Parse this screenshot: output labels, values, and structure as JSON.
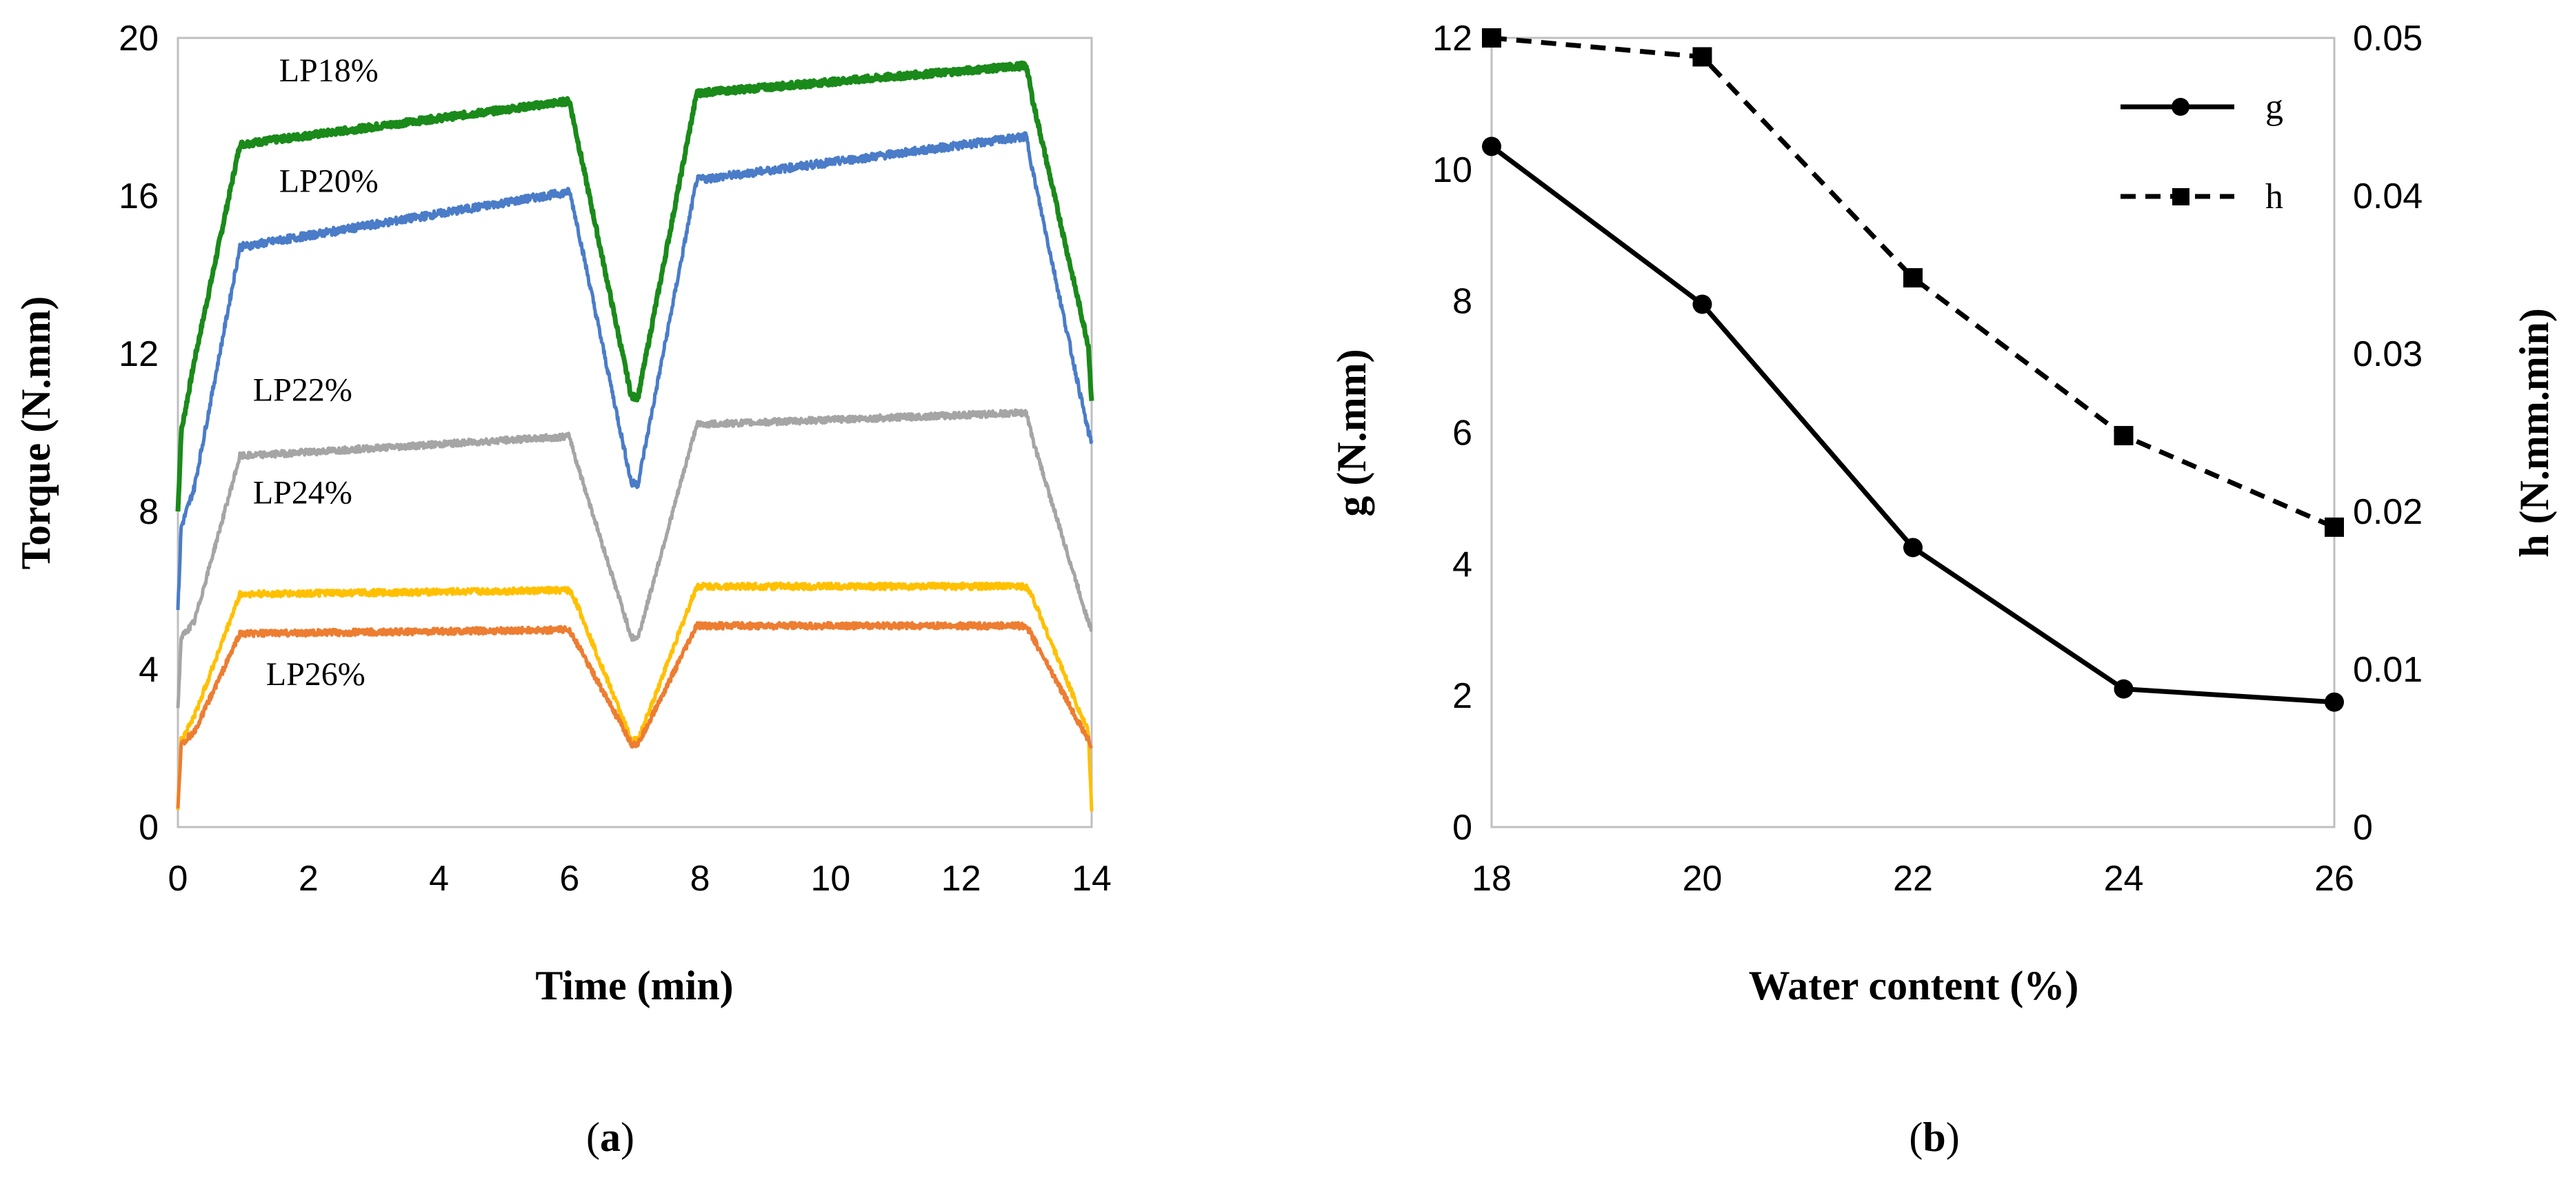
{
  "chart_data": [
    {
      "id": "a",
      "type": "line",
      "caption_open": "(",
      "caption_letter": "a",
      "caption_close": ")",
      "xlabel": "Time (min)",
      "ylabel": "Torque (N.mm)",
      "xlim": [
        0,
        14
      ],
      "ylim": [
        0,
        20
      ],
      "xticks": [
        0,
        2,
        4,
        6,
        8,
        10,
        12,
        14
      ],
      "yticks": [
        0,
        4,
        8,
        12,
        16,
        20
      ],
      "series": [
        {
          "name": "LP18%",
          "color": "#1a8a1a",
          "label_x": 1.55,
          "label_y": 18.9,
          "x": [
            0,
            0.05,
            0.25,
            0.95,
            6.0,
            6.1,
            6.95,
            7.05,
            7.95,
            13.0,
            13.1,
            13.95,
            14
          ],
          "y": [
            8.0,
            10.0,
            11.8,
            17.3,
            18.4,
            17.6,
            10.9,
            10.9,
            18.6,
            19.3,
            18.4,
            12.2,
            10.8
          ]
        },
        {
          "name": "LP20%",
          "color": "#4a7cc8",
          "label_x": 1.55,
          "label_y": 16.1,
          "x": [
            0,
            0.05,
            0.25,
            0.95,
            6.0,
            6.1,
            6.95,
            7.05,
            7.95,
            13.0,
            13.1,
            13.95,
            14
          ],
          "y": [
            5.5,
            7.6,
            8.6,
            14.7,
            16.1,
            15.4,
            8.7,
            8.7,
            16.4,
            17.5,
            16.6,
            10.0,
            9.8
          ]
        },
        {
          "name": "LP22%",
          "color": "#a5a5a5",
          "label_x": 1.15,
          "label_y": 10.8,
          "x": [
            0,
            0.05,
            0.25,
            0.95,
            6.0,
            6.1,
            6.95,
            7.05,
            7.95,
            13.0,
            13.1,
            13.95,
            14
          ],
          "y": [
            3.0,
            4.8,
            5.2,
            9.4,
            9.9,
            9.3,
            4.8,
            4.8,
            10.2,
            10.5,
            9.8,
            5.2,
            5.0
          ]
        },
        {
          "name": "LP24%",
          "color": "#ffc000",
          "label_x": 1.15,
          "label_y": 8.2,
          "x": [
            0,
            0.05,
            0.25,
            0.95,
            6.0,
            6.1,
            6.95,
            7.05,
            7.95,
            13.0,
            13.1,
            13.95,
            14
          ],
          "y": [
            0.5,
            2.2,
            2.8,
            5.9,
            6.0,
            5.7,
            2.2,
            2.2,
            6.1,
            6.1,
            5.8,
            2.4,
            0.4
          ]
        },
        {
          "name": "LP26%",
          "color": "#ed7d31",
          "label_x": 1.35,
          "label_y": 3.6,
          "x": [
            0,
            0.05,
            0.25,
            0.95,
            6.0,
            6.1,
            6.95,
            7.05,
            7.95,
            13.0,
            13.1,
            13.95,
            14
          ],
          "y": [
            0.5,
            2.1,
            2.4,
            4.9,
            5.0,
            4.7,
            2.1,
            2.1,
            5.1,
            5.1,
            4.8,
            2.2,
            2.0
          ]
        }
      ]
    },
    {
      "id": "b",
      "type": "line",
      "caption_open": "(",
      "caption_letter": "b",
      "caption_close": ")",
      "xlabel": "Water content (%)",
      "ylabel": "g (N.mm)",
      "y2label": "h (N.mm.min)",
      "xlim": [
        18,
        26
      ],
      "ylim": [
        0,
        12
      ],
      "y2lim": [
        0,
        0.05
      ],
      "xticks": [
        18,
        20,
        22,
        24,
        26
      ],
      "yticks": [
        0,
        2,
        4,
        6,
        8,
        10,
        12
      ],
      "y2ticks": [
        "0",
        "0.01",
        "0.02",
        "0.03",
        "0.04",
        "0.05"
      ],
      "x": [
        18,
        20,
        22,
        24,
        26
      ],
      "series": [
        {
          "name": "g",
          "axis": "left",
          "marker": "circle",
          "dash": "solid",
          "color": "#000000",
          "values": [
            10.35,
            7.95,
            4.25,
            2.1,
            1.9
          ]
        },
        {
          "name": "h",
          "axis": "right",
          "marker": "square",
          "dash": "dashed",
          "color": "#000000",
          "values": [
            0.05,
            0.0488,
            0.0348,
            0.0248,
            0.019
          ]
        }
      ],
      "legend": "top-right"
    }
  ]
}
